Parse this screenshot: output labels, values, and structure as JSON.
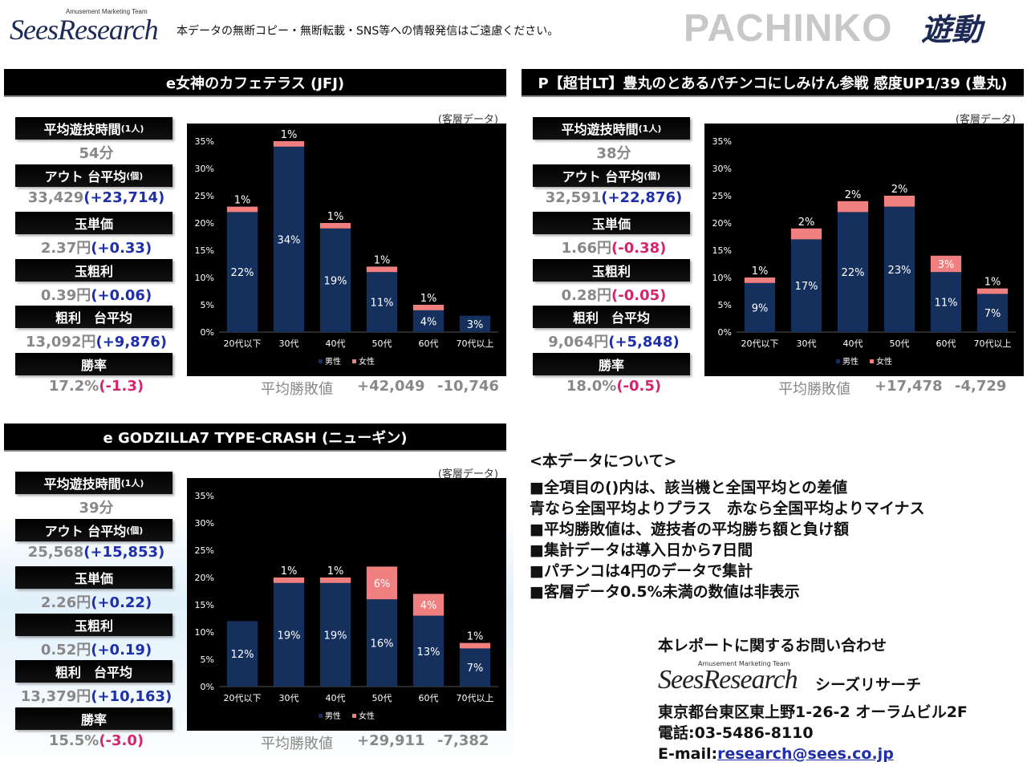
{
  "header": {
    "logo_sub": "Amusement Marketing Team",
    "logo_main": "SeesResearch",
    "notice": "本データの無断コピー・無断転載・SNS等への情報発信はご遠慮ください。",
    "pachinko": "PACHINKO",
    "yudo": "遊動"
  },
  "panels": [
    {
      "title": "e女神のカフェテラス (JFJ)",
      "kyakuso": "(客層データ)",
      "stats": [
        {
          "label": "平均遊技時間",
          "label_small": "(1人)",
          "value": "54分",
          "diff": ""
        },
        {
          "label": "アウト 台平均",
          "label_small": "(個)",
          "value": "33,429",
          "diff": "(+23,714)"
        },
        {
          "label": "玉単価",
          "label_small": "",
          "value": "2.37円",
          "diff": "(+0.33)"
        },
        {
          "label": "玉粗利",
          "label_small": "",
          "value": "0.39円",
          "diff": "(+0.06)"
        },
        {
          "label": "粗利　台平均",
          "label_small": "",
          "value": "13,092円",
          "diff": "(+9,876)"
        },
        {
          "label": "勝率",
          "label_small": "",
          "value": "17.2%",
          "diff": "(-1.3)"
        }
      ],
      "winloss": {
        "label": "平均勝敗値",
        "win": "+42,049",
        "lose": "-10,746"
      }
    },
    {
      "title": "P【超甘LT】豊丸のとあるパチンコにしみけん参戦 感度UP1/39 (豊丸)",
      "kyakuso": "(客層データ)",
      "stats": [
        {
          "label": "平均遊技時間",
          "label_small": "(1人)",
          "value": "38分",
          "diff": ""
        },
        {
          "label": "アウト 台平均",
          "label_small": "(個)",
          "value": "32,591",
          "diff": "(+22,876)"
        },
        {
          "label": "玉単価",
          "label_small": "",
          "value": "1.66円",
          "diff": "(-0.38)"
        },
        {
          "label": "玉粗利",
          "label_small": "",
          "value": "0.28円",
          "diff": "(-0.05)"
        },
        {
          "label": "粗利　台平均",
          "label_small": "",
          "value": "9,064円",
          "diff": "(+5,848)"
        },
        {
          "label": "勝率",
          "label_small": "",
          "value": "18.0%",
          "diff": "(-0.5)"
        }
      ],
      "winloss": {
        "label": "平均勝敗値",
        "win": "+17,478",
        "lose": "-4,729"
      }
    },
    {
      "title": "e GODZILLA7 TYPE-CRASH (ニューギン)",
      "kyakuso": "(客層データ)",
      "stats": [
        {
          "label": "平均遊技時間",
          "label_small": "(1人)",
          "value": "39分",
          "diff": ""
        },
        {
          "label": "アウト 台平均",
          "label_small": "(個)",
          "value": "25,568",
          "diff": "(+15,853)"
        },
        {
          "label": "玉単価",
          "label_small": "",
          "value": "2.26円",
          "diff": "(+0.22)"
        },
        {
          "label": "玉粗利",
          "label_small": "",
          "value": "0.52円",
          "diff": "(+0.19)"
        },
        {
          "label": "粗利　台平均",
          "label_small": "",
          "value": "13,379円",
          "diff": "(+10,163)"
        },
        {
          "label": "勝率",
          "label_small": "",
          "value": "15.5%",
          "diff": "(-3.0)"
        }
      ],
      "winloss": {
        "label": "平均勝敗値",
        "win": "+29,911",
        "lose": "-7,382"
      }
    }
  ],
  "info": {
    "title": "<本データについて>",
    "lines": [
      "■全項目の()内は、該当機と全国平均との差値",
      "青なら全国平均よりプラス　赤なら全国平均よりマイナス",
      "■平均勝敗値は、遊技者の平均勝ち額と負け額",
      "■集計データは導入日から7日間",
      "■パチンコは4円のデータで集計",
      "■客層データ0.5%未満の数値は非表示"
    ]
  },
  "contact": {
    "title": "本レポートに関するお問い合わせ",
    "logo_sub": "Amusement Marketing Team",
    "logo_main": "SeesResearch",
    "company": "シーズリサーチ",
    "address": "東京都台東区東上野1-26-2 オーラムビル2F",
    "phone": "電話:03-5486-8110",
    "email_prefix": "E-mail:",
    "email": "research@sees.co.jp"
  },
  "colors": {
    "male": "#16305e",
    "female": "#f08080",
    "positive": "#1f2fa8",
    "negative": "#d6246e",
    "chart_bg": "#000000"
  },
  "chart_data": [
    {
      "type": "bar",
      "stacked": true,
      "categories": [
        "20代以下",
        "30代",
        "40代",
        "50代",
        "60代",
        "70代以上"
      ],
      "series": [
        {
          "name": "男性",
          "values": [
            22,
            34,
            19,
            11,
            4,
            3
          ],
          "labels": [
            "22%",
            "34%",
            "19%",
            "11%",
            "4%",
            "3%"
          ]
        },
        {
          "name": "女性",
          "values": [
            1,
            1,
            1,
            1,
            1,
            0
          ],
          "labels": [
            "1%",
            "1%",
            "1%",
            "1%",
            "1%",
            ""
          ]
        }
      ],
      "yticks": [
        "0%",
        "5%",
        "10%",
        "15%",
        "20%",
        "25%",
        "30%",
        "35%"
      ],
      "ylim": [
        0,
        35
      ],
      "legend": "bottom"
    },
    {
      "type": "bar",
      "stacked": true,
      "categories": [
        "20代以下",
        "30代",
        "40代",
        "50代",
        "60代",
        "70代以上"
      ],
      "series": [
        {
          "name": "男性",
          "values": [
            9,
            17,
            22,
            23,
            11,
            7
          ],
          "labels": [
            "9%",
            "17%",
            "22%",
            "23%",
            "11%",
            "7%"
          ]
        },
        {
          "name": "女性",
          "values": [
            1,
            2,
            2,
            2,
            3,
            1
          ],
          "labels": [
            "1%",
            "2%",
            "2%",
            "2%",
            "3%",
            "1%"
          ]
        }
      ],
      "yticks": [
        "0%",
        "5%",
        "10%",
        "15%",
        "20%",
        "25%",
        "30%",
        "35%"
      ],
      "ylim": [
        0,
        35
      ],
      "legend": "bottom"
    },
    {
      "type": "bar",
      "stacked": true,
      "categories": [
        "20代以下",
        "30代",
        "40代",
        "50代",
        "60代",
        "70代以上"
      ],
      "series": [
        {
          "name": "男性",
          "values": [
            12,
            19,
            19,
            16,
            13,
            7
          ],
          "labels": [
            "12%",
            "19%",
            "19%",
            "16%",
            "13%",
            "7%"
          ]
        },
        {
          "name": "女性",
          "values": [
            0,
            1,
            1,
            6,
            4,
            1
          ],
          "labels": [
            "",
            "1%",
            "1%",
            "6%",
            "4%",
            "1%"
          ]
        }
      ],
      "yticks": [
        "0%",
        "5%",
        "10%",
        "15%",
        "20%",
        "25%",
        "30%",
        "35%"
      ],
      "ylim": [
        0,
        35
      ],
      "legend": "bottom"
    }
  ]
}
